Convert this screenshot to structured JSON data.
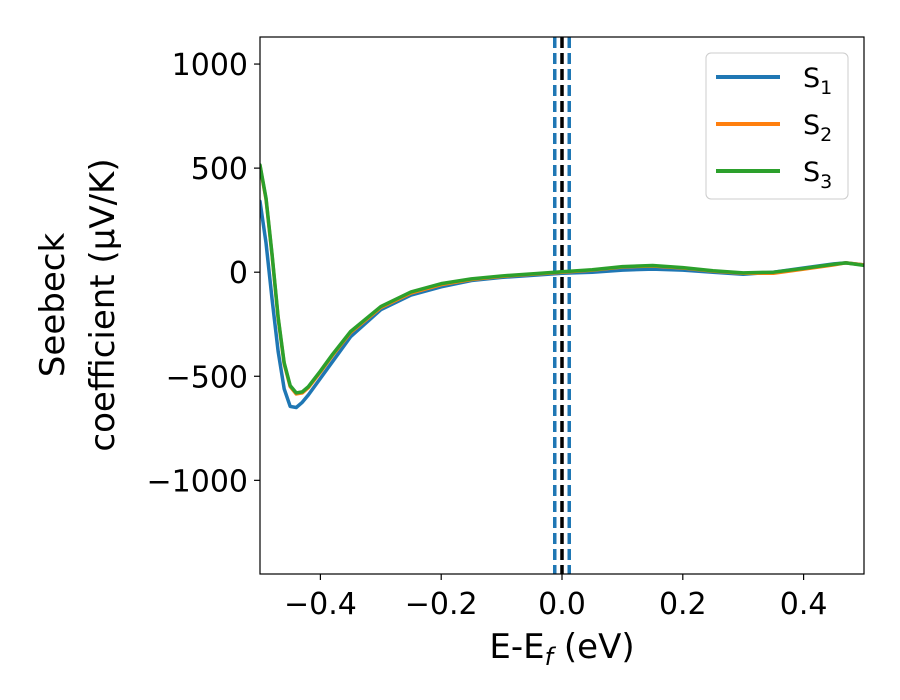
{
  "chart_data": {
    "type": "line",
    "xlabel_main": "E-E",
    "xlabel_sub": "f",
    "xlabel_unit": " (eV)",
    "ylabel_line1": "Seebeck",
    "ylabel_line2": "coefficient  (μV/K)",
    "xlim": [
      -0.5,
      0.5
    ],
    "ylim": [
      -1450,
      1130
    ],
    "x_ticks": [
      -0.4,
      -0.2,
      0.0,
      0.2,
      0.4
    ],
    "x_tick_labels": [
      "−0.4",
      "−0.2",
      "0.0",
      "0.2",
      "0.4"
    ],
    "y_ticks": [
      1000,
      500,
      0,
      -500,
      -1000
    ],
    "y_tick_labels": [
      "1000",
      "500",
      "0",
      "−500",
      "−1000"
    ],
    "grid": false,
    "legend_position": "top-right",
    "vertical_lines": [
      {
        "x": -0.012,
        "style": "dashed",
        "color": "#1f77b4"
      },
      {
        "x": 0.0,
        "style": "dashed",
        "color": "#000000"
      },
      {
        "x": 0.012,
        "style": "dashed",
        "color": "#1f77b4"
      }
    ],
    "series": [
      {
        "name_main": "S",
        "name_sub": "1",
        "color": "#1f77b4",
        "x": [
          -0.5,
          -0.49,
          -0.48,
          -0.47,
          -0.46,
          -0.45,
          -0.44,
          -0.43,
          -0.42,
          -0.4,
          -0.38,
          -0.35,
          -0.3,
          -0.25,
          -0.2,
          -0.15,
          -0.1,
          -0.05,
          0.0,
          0.05,
          0.1,
          0.15,
          0.2,
          0.25,
          0.3,
          0.35,
          0.4,
          0.45,
          0.47,
          0.5
        ],
        "y": [
          340,
          140,
          -130,
          -380,
          -560,
          -645,
          -650,
          -625,
          -590,
          -510,
          -430,
          -310,
          -180,
          -110,
          -70,
          -40,
          -25,
          -15,
          -5,
          0,
          10,
          15,
          10,
          0,
          -10,
          0,
          20,
          40,
          45,
          35
        ]
      },
      {
        "name_main": "S",
        "name_sub": "2",
        "color": "#ff7f0e",
        "x": [
          -0.5,
          -0.49,
          -0.48,
          -0.47,
          -0.46,
          -0.45,
          -0.44,
          -0.43,
          -0.42,
          -0.4,
          -0.38,
          -0.35,
          -0.3,
          -0.25,
          -0.2,
          -0.15,
          -0.1,
          -0.05,
          0.0,
          0.05,
          0.1,
          0.15,
          0.2,
          0.25,
          0.3,
          0.35,
          0.4,
          0.45,
          0.47,
          0.5
        ],
        "y": [
          510,
          350,
          80,
          -220,
          -440,
          -550,
          -585,
          -580,
          -555,
          -480,
          -400,
          -290,
          -170,
          -100,
          -60,
          -35,
          -20,
          -10,
          0,
          10,
          25,
          30,
          20,
          5,
          -5,
          -5,
          15,
          35,
          45,
          35
        ]
      },
      {
        "name_main": "S",
        "name_sub": "3",
        "color": "#2ca02c",
        "x": [
          -0.5,
          -0.49,
          -0.48,
          -0.47,
          -0.46,
          -0.45,
          -0.44,
          -0.43,
          -0.42,
          -0.4,
          -0.38,
          -0.35,
          -0.3,
          -0.25,
          -0.2,
          -0.15,
          -0.1,
          -0.05,
          0.0,
          0.05,
          0.1,
          0.15,
          0.2,
          0.25,
          0.3,
          0.35,
          0.4,
          0.45,
          0.47,
          0.5
        ],
        "y": [
          515,
          355,
          85,
          -215,
          -435,
          -545,
          -580,
          -575,
          -550,
          -475,
          -395,
          -285,
          -165,
          -95,
          -55,
          -32,
          -18,
          -8,
          2,
          12,
          27,
          32,
          22,
          7,
          -3,
          0,
          18,
          38,
          45,
          33
        ]
      }
    ]
  }
}
